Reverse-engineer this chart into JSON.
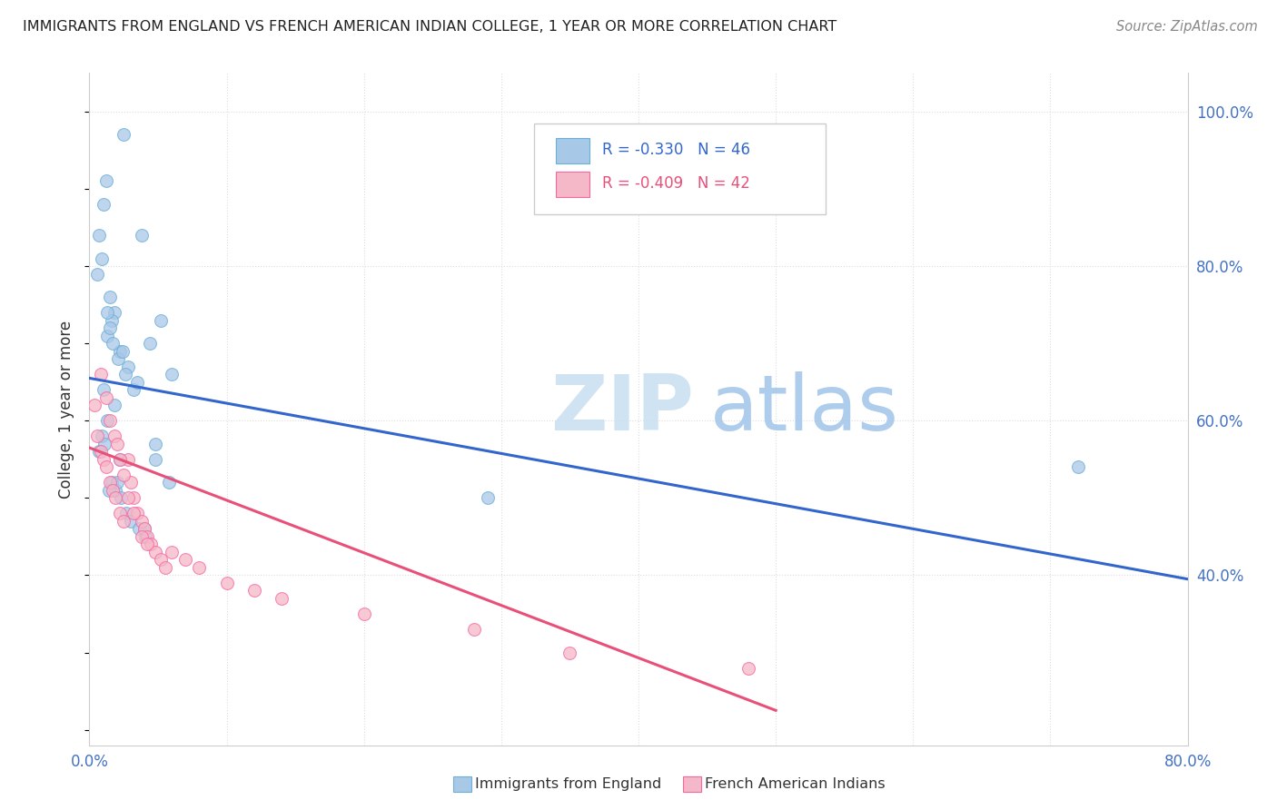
{
  "title": "IMMIGRANTS FROM ENGLAND VS FRENCH AMERICAN INDIAN COLLEGE, 1 YEAR OR MORE CORRELATION CHART",
  "source": "Source: ZipAtlas.com",
  "ylabel": "College, 1 year or more",
  "xlim": [
    0.0,
    0.8
  ],
  "ylim": [
    0.18,
    1.05
  ],
  "xticks": [
    0.0,
    0.1,
    0.2,
    0.3,
    0.4,
    0.5,
    0.6,
    0.7,
    0.8
  ],
  "xticklabels": [
    "0.0%",
    "",
    "",
    "",
    "",
    "",
    "",
    "",
    "80.0%"
  ],
  "yticks_right": [
    0.4,
    0.6,
    0.8,
    1.0
  ],
  "ytick_right_labels": [
    "40.0%",
    "60.0%",
    "80.0%",
    "100.0%"
  ],
  "legend_blue_R": "R = -0.330",
  "legend_blue_N": "N = 46",
  "legend_pink_R": "R = -0.409",
  "legend_pink_N": "N = 42",
  "watermark_zip": "ZIP",
  "watermark_atlas": "atlas",
  "blue_color": "#a8c8e8",
  "pink_color": "#f4b8c8",
  "blue_edge_color": "#6baed6",
  "pink_edge_color": "#f768a1",
  "blue_line_color": "#3366cc",
  "pink_line_color": "#e8507a",
  "blue_scatter_x": [
    0.025,
    0.01,
    0.007,
    0.009,
    0.006,
    0.015,
    0.018,
    0.016,
    0.013,
    0.022,
    0.028,
    0.038,
    0.052,
    0.06,
    0.01,
    0.013,
    0.015,
    0.017,
    0.021,
    0.026,
    0.032,
    0.024,
    0.035,
    0.044,
    0.018,
    0.013,
    0.009,
    0.011,
    0.007,
    0.022,
    0.048,
    0.048,
    0.29,
    0.72,
    0.016,
    0.019,
    0.023,
    0.027,
    0.03,
    0.036,
    0.041,
    0.02,
    0.014,
    0.04,
    0.058,
    0.012
  ],
  "blue_scatter_y": [
    0.97,
    0.88,
    0.84,
    0.81,
    0.79,
    0.76,
    0.74,
    0.73,
    0.71,
    0.69,
    0.67,
    0.84,
    0.73,
    0.66,
    0.64,
    0.74,
    0.72,
    0.7,
    0.68,
    0.66,
    0.64,
    0.69,
    0.65,
    0.7,
    0.62,
    0.6,
    0.58,
    0.57,
    0.56,
    0.55,
    0.55,
    0.57,
    0.5,
    0.54,
    0.52,
    0.51,
    0.5,
    0.48,
    0.47,
    0.46,
    0.45,
    0.52,
    0.51,
    0.46,
    0.52,
    0.91
  ],
  "pink_scatter_x": [
    0.004,
    0.006,
    0.008,
    0.01,
    0.012,
    0.015,
    0.017,
    0.019,
    0.022,
    0.025,
    0.028,
    0.03,
    0.032,
    0.035,
    0.038,
    0.04,
    0.042,
    0.045,
    0.048,
    0.052,
    0.055,
    0.008,
    0.012,
    0.015,
    0.018,
    0.02,
    0.022,
    0.025,
    0.028,
    0.032,
    0.038,
    0.042,
    0.06,
    0.07,
    0.08,
    0.1,
    0.12,
    0.14,
    0.2,
    0.28,
    0.35,
    0.48
  ],
  "pink_scatter_y": [
    0.62,
    0.58,
    0.56,
    0.55,
    0.54,
    0.52,
    0.51,
    0.5,
    0.48,
    0.47,
    0.55,
    0.52,
    0.5,
    0.48,
    0.47,
    0.46,
    0.45,
    0.44,
    0.43,
    0.42,
    0.41,
    0.66,
    0.63,
    0.6,
    0.58,
    0.57,
    0.55,
    0.53,
    0.5,
    0.48,
    0.45,
    0.44,
    0.43,
    0.42,
    0.41,
    0.39,
    0.38,
    0.37,
    0.35,
    0.33,
    0.3,
    0.28
  ],
  "blue_line_x": [
    0.0,
    0.8
  ],
  "blue_line_y": [
    0.655,
    0.395
  ],
  "pink_line_x": [
    0.0,
    0.5
  ],
  "pink_line_y": [
    0.565,
    0.225
  ],
  "grid_color": "#dddddd",
  "spine_color": "#cccccc"
}
